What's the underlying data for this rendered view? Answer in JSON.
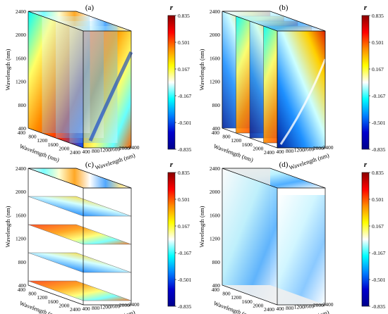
{
  "figure": {
    "panels": [
      {
        "label": "(a)",
        "variant": "a"
      },
      {
        "label": "(b)",
        "variant": "b"
      },
      {
        "label": "(c)",
        "variant": "c"
      },
      {
        "label": "(d)",
        "variant": "d"
      }
    ],
    "axis_label": "Wavelength (nm)",
    "vertical_ticks": [
      "400",
      "800",
      "1200",
      "1600",
      "2000",
      "2400"
    ],
    "depth_ticks": [
      "400",
      "800",
      "1200",
      "1600",
      "2000",
      "2400"
    ],
    "front_ticks": [
      "400",
      "800",
      "1200",
      "1600",
      "2000",
      "2400"
    ],
    "colorbar": {
      "symbol": "r",
      "ticks": [
        "0.835",
        "0.501",
        "0.167",
        "-0.167",
        "-0.501",
        "-0.835"
      ],
      "colors": [
        "#8b0000",
        "#ff0000",
        "#ff8c00",
        "#ffff00",
        "#ffffff",
        "#00ffff",
        "#0080ff",
        "#0000cd",
        "#00008b"
      ]
    }
  }
}
